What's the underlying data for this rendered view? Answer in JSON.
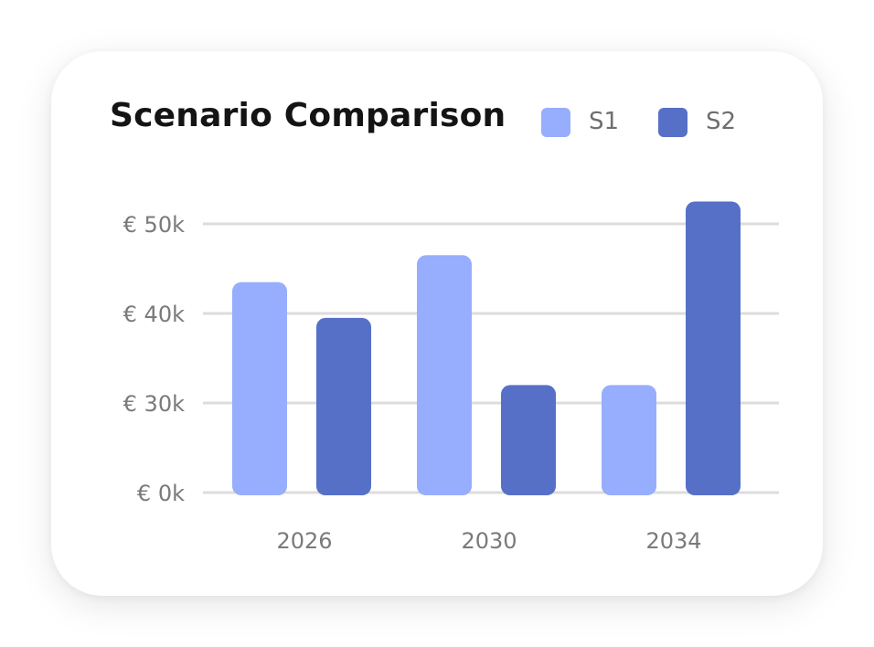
{
  "chart_data": {
    "type": "bar",
    "title": "Scenario Comparison",
    "categories": [
      "2026",
      "2030",
      "2034"
    ],
    "series": [
      {
        "name": "S1",
        "values": [
          43500,
          46500,
          32000
        ],
        "color": "#97adfd"
      },
      {
        "name": "S2",
        "values": [
          39500,
          32000,
          52500
        ],
        "color": "#5670c8"
      }
    ],
    "y_ticks": [
      {
        "label": "€ 0k",
        "value": 0
      },
      {
        "label": "€ 30k",
        "value": 30000
      },
      {
        "label": "€ 40k",
        "value": 40000
      },
      {
        "label": "€ 50k",
        "value": 50000
      }
    ],
    "ylim": [
      0,
      53000
    ],
    "grid": true,
    "legend_position": "top-right",
    "gridline_color": "#dcdcdc"
  }
}
